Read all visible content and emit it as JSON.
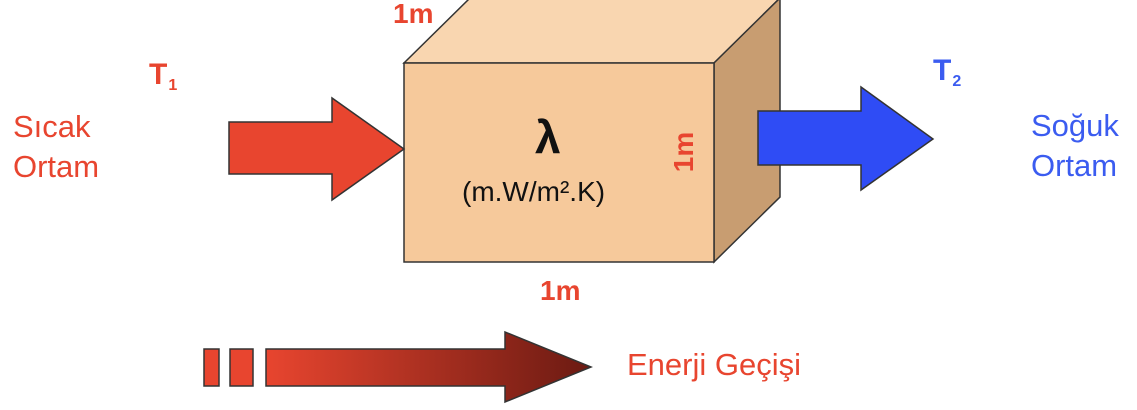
{
  "diagram": {
    "hot_side": {
      "temp_symbol": "T",
      "temp_subscript": "1",
      "label_line1": "Sıcak",
      "label_line2": "Ortam",
      "color": "#e8452f"
    },
    "cold_side": {
      "temp_symbol": "T",
      "temp_subscript": "2",
      "label_line1": "Soğuk",
      "label_line2": "Ortam",
      "color": "#3b5cf0"
    },
    "block": {
      "symbol": "λ",
      "unit": "(m.W/m².K)",
      "top_dimension": "1m",
      "side_dimension": "1m",
      "bottom_dimension": "1m",
      "front_color": "#f6c99b",
      "top_color": "#f9d6b0",
      "side_color": "#c89d71"
    },
    "energy_transfer": {
      "label": "Enerji Geçişi",
      "arrow_start_color": "#e8452f",
      "arrow_end_color": "#6b1a12"
    }
  }
}
